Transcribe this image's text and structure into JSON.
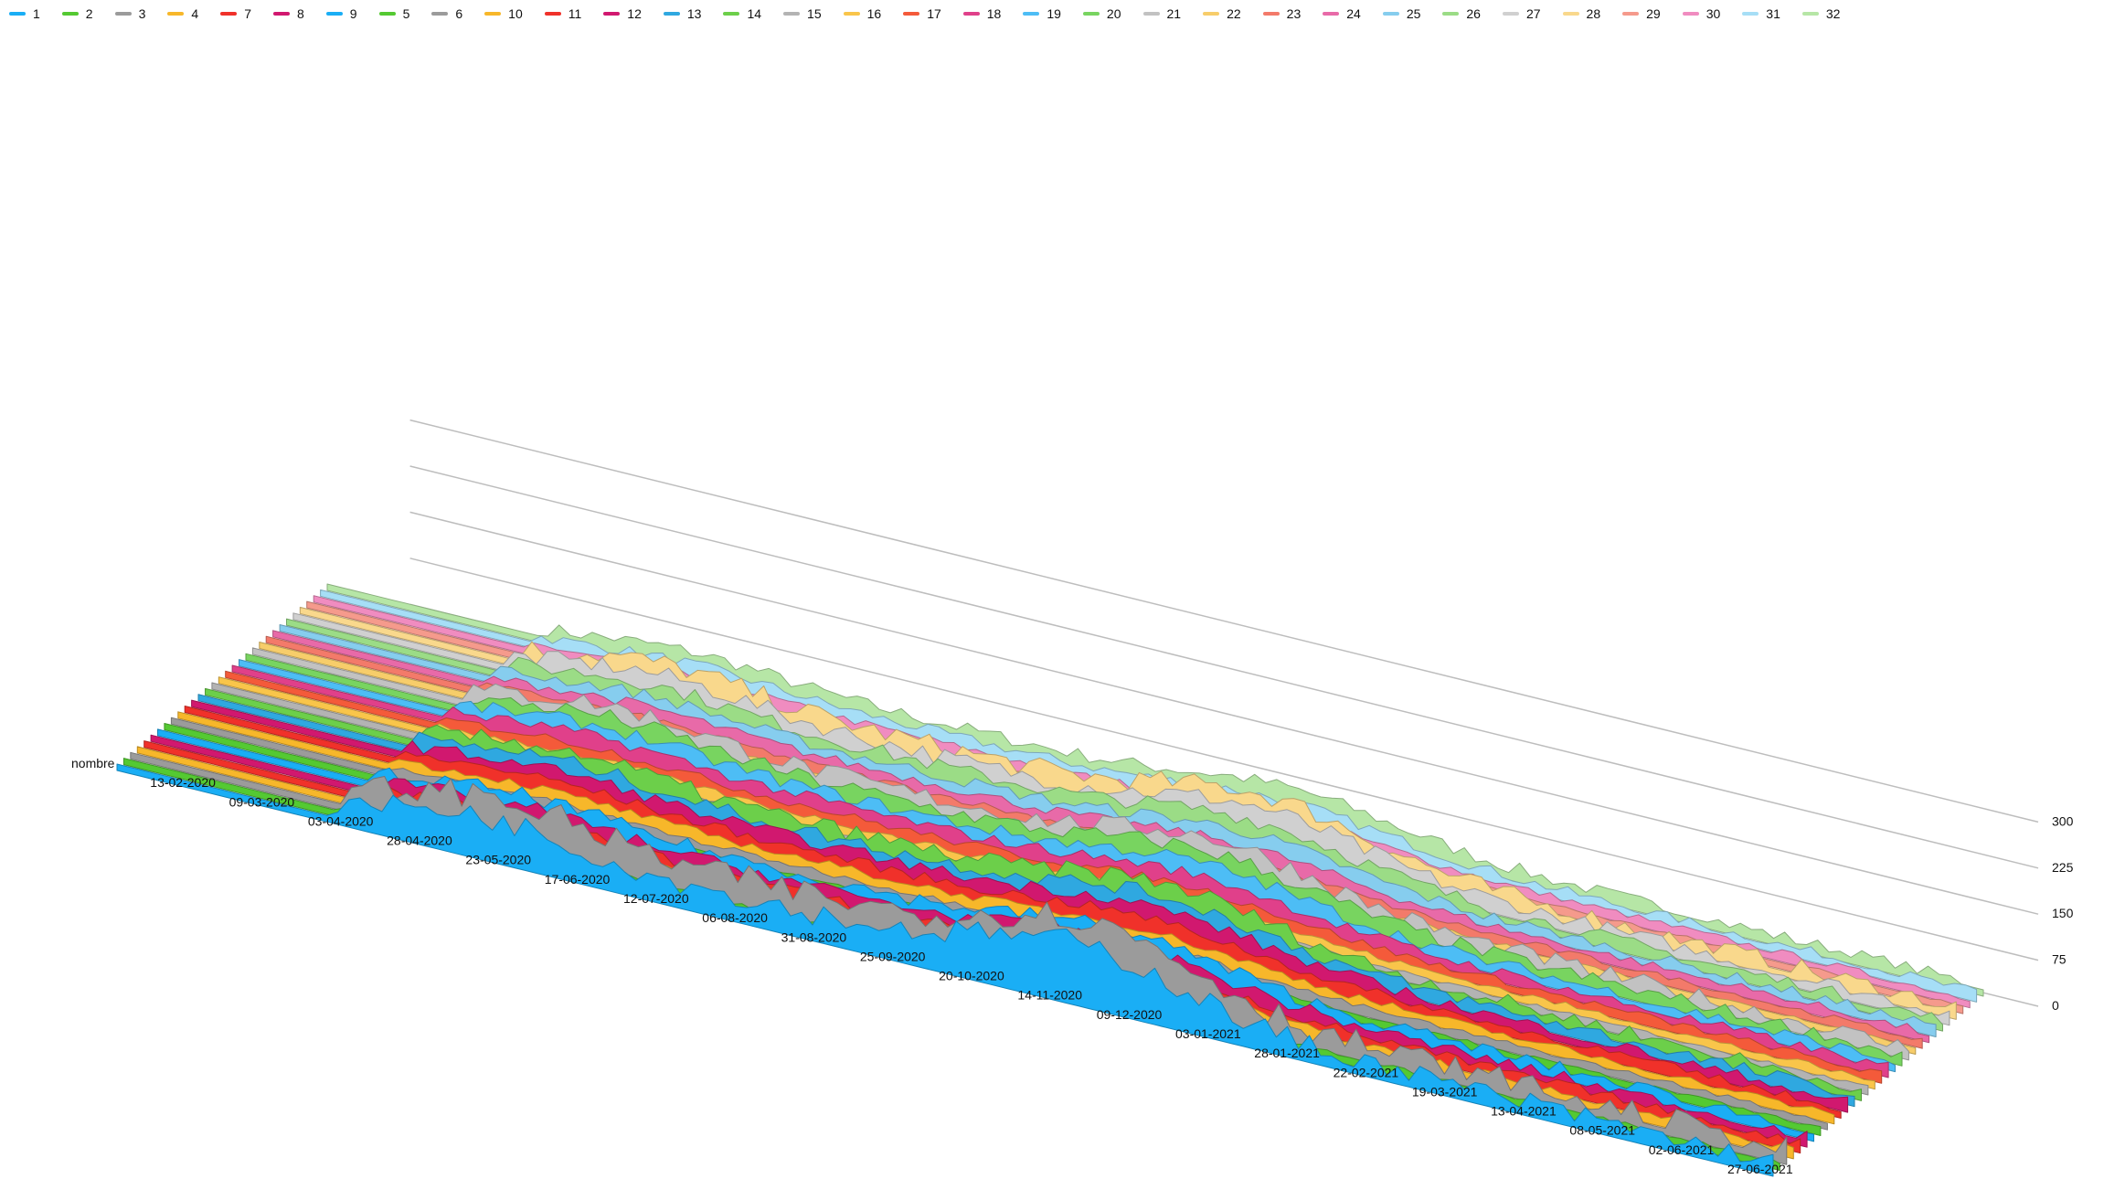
{
  "chart_data": {
    "type": "area",
    "view": "3d-ribbons",
    "x_labels": [
      "nombre",
      "13-02-2020",
      "09-03-2020",
      "03-04-2020",
      "28-04-2020",
      "23-05-2020",
      "17-06-2020",
      "12-07-2020",
      "06-08-2020",
      "31-08-2020",
      "25-09-2020",
      "20-10-2020",
      "14-11-2020",
      "09-12-2020",
      "03-01-2021",
      "28-01-2021",
      "22-02-2021",
      "19-03-2021",
      "13-04-2021",
      "08-05-2021",
      "02-06-2021",
      "27-06-2021"
    ],
    "y_ticks": [
      0,
      75,
      150,
      225,
      300
    ],
    "ylim": [
      0,
      300
    ],
    "legend_position": "top",
    "grid": true,
    "series": [
      {
        "name": "1",
        "color": "#1aaef5"
      },
      {
        "name": "2",
        "color": "#54c932"
      },
      {
        "name": "3",
        "color": "#9b9b9b"
      },
      {
        "name": "4",
        "color": "#f7b72a"
      },
      {
        "name": "7",
        "color": "#f0312a"
      },
      {
        "name": "8",
        "color": "#d1186f"
      },
      {
        "name": "9",
        "color": "#1aaef5"
      },
      {
        "name": "5",
        "color": "#54c932"
      },
      {
        "name": "6",
        "color": "#9b9b9b"
      },
      {
        "name": "10",
        "color": "#f7b72a"
      },
      {
        "name": "11",
        "color": "#f0312a"
      },
      {
        "name": "12",
        "color": "#d1186f"
      },
      {
        "name": "13",
        "color": "#2fa8e0"
      },
      {
        "name": "14",
        "color": "#6ccf4a"
      },
      {
        "name": "15",
        "color": "#b3b3b3"
      },
      {
        "name": "16",
        "color": "#f9c54a"
      },
      {
        "name": "17",
        "color": "#f45a3a"
      },
      {
        "name": "18",
        "color": "#e0408a"
      },
      {
        "name": "19",
        "color": "#4dbdf5"
      },
      {
        "name": "20",
        "color": "#78d460"
      },
      {
        "name": "21",
        "color": "#c2c2c2"
      },
      {
        "name": "22",
        "color": "#f7cd6a"
      },
      {
        "name": "23",
        "color": "#f37a6a"
      },
      {
        "name": "24",
        "color": "#e86aa8"
      },
      {
        "name": "25",
        "color": "#86cdee"
      },
      {
        "name": "26",
        "color": "#9bdc86"
      },
      {
        "name": "27",
        "color": "#d0d0d0"
      },
      {
        "name": "28",
        "color": "#f9d88c"
      },
      {
        "name": "29",
        "color": "#f59a8c"
      },
      {
        "name": "30",
        "color": "#f08cc0"
      },
      {
        "name": "31",
        "color": "#a6def6"
      },
      {
        "name": "32",
        "color": "#b6e6a6"
      }
    ]
  }
}
